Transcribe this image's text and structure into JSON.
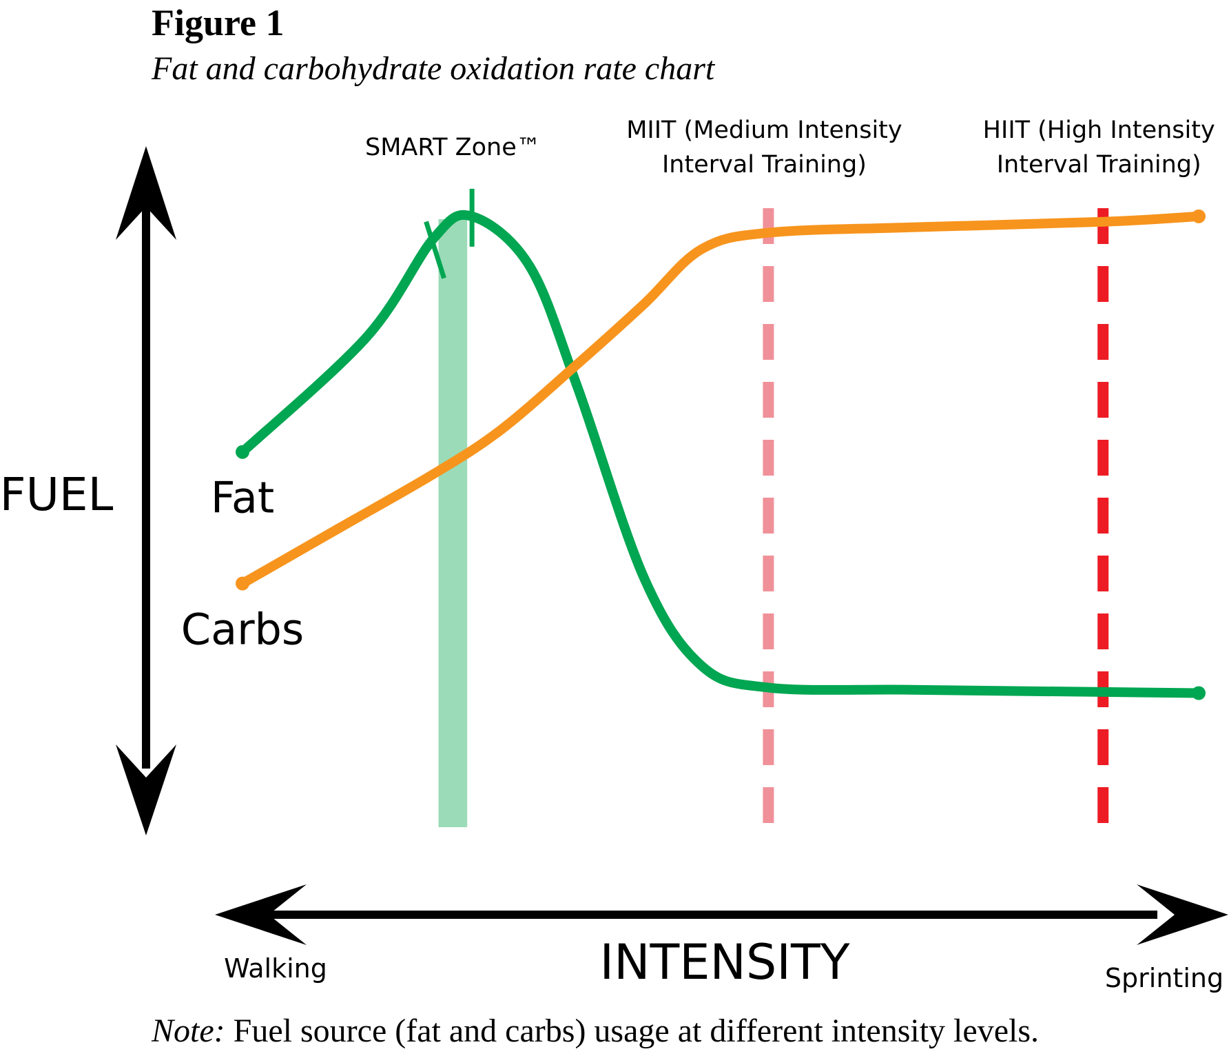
{
  "figure": {
    "number": "Figure 1",
    "caption": "Fat and carbohydrate oxidation rate chart",
    "note_label": "Note:",
    "note_text": " Fuel source (fat and carbs) usage at different intensity levels."
  },
  "chart_data": {
    "type": "line",
    "ylabel": "FUEL",
    "xlabel": "INTENSITY",
    "x_start_label": "Walking",
    "x_end_label": "Sprinting",
    "xlim": [
      0,
      100
    ],
    "ylim": [
      0,
      100
    ],
    "series": [
      {
        "name": "Fat",
        "color": "#00a651",
        "points": [
          [
            0,
            54
          ],
          [
            13,
            75
          ],
          [
            20,
            93
          ],
          [
            24,
            97
          ],
          [
            30,
            88
          ],
          [
            35,
            66
          ],
          [
            42,
            31
          ],
          [
            48,
            15
          ],
          [
            55,
            11
          ],
          [
            70,
            10.6
          ],
          [
            90,
            10.2
          ],
          [
            100,
            10
          ]
        ]
      },
      {
        "name": "Carbs",
        "color": "#f7941d",
        "points": [
          [
            0,
            30
          ],
          [
            10,
            40
          ],
          [
            20,
            50
          ],
          [
            27,
            58
          ],
          [
            35,
            70
          ],
          [
            42,
            81
          ],
          [
            48,
            91
          ],
          [
            55,
            94
          ],
          [
            70,
            95
          ],
          [
            90,
            96
          ],
          [
            100,
            97
          ]
        ]
      }
    ],
    "zones": [
      {
        "label": "SMART Zone™",
        "x_start": 20.5,
        "x_end": 23.5,
        "color": "#9bdbb8"
      }
    ],
    "markers": [
      {
        "label_line1": "MIIT (Medium Intensity",
        "label_line2": "Interval Training)",
        "x": 55,
        "color": "#f0919a",
        "style": "dashed"
      },
      {
        "label_line1": "HIIT (High Intensity",
        "label_line2": "Interval Training)",
        "x": 90,
        "color": "#ed1c24",
        "style": "dashed"
      }
    ],
    "grid": false,
    "axes_style": "double-headed arrows"
  }
}
